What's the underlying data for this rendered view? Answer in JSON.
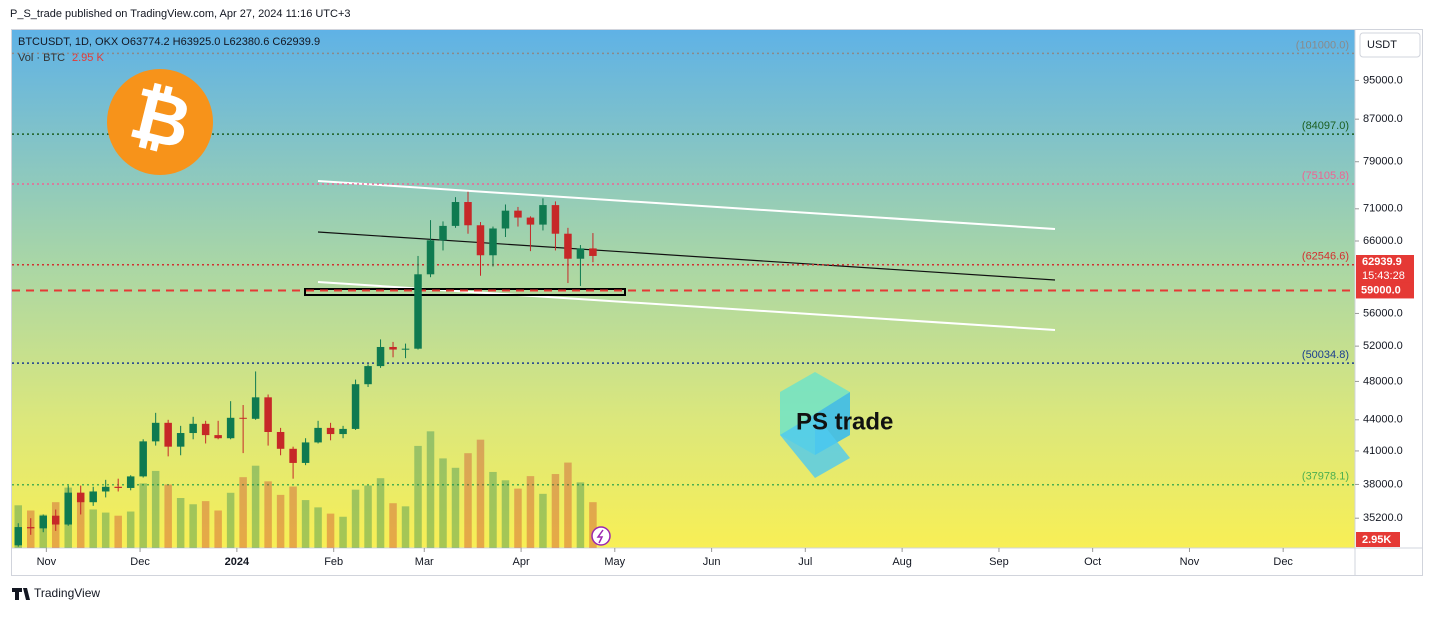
{
  "header": {
    "publisher": "P_S_trade published on TradingView.com, Apr 27, 2024 11:16 UTC+3"
  },
  "footer": {
    "brand": "TradingView"
  },
  "chart_data": {
    "type": "candlestick",
    "symbol_line": "BTCUSDT, 1D, OKX  O63774.2 H63925.0 L62380.6 C62939.9",
    "volume_label": "Vol · BTC",
    "volume_value": "2.95 K",
    "currency": "USDT",
    "last_price": "62939.9",
    "countdown": "15:43:28",
    "last_volume": "2.95K",
    "logo_symbol": "₿",
    "watermark": "PS trade",
    "log_scale": true,
    "up_color": "#0f7a50",
    "down_color": "#c62828",
    "xlim": [
      -11,
      419
    ],
    "xticks": [
      {
        "value": 0,
        "label": "Nov"
      },
      {
        "value": 30,
        "label": "Dec"
      },
      {
        "value": 61,
        "label": "2024"
      },
      {
        "value": 92,
        "label": "Feb"
      },
      {
        "value": 121,
        "label": "Mar"
      },
      {
        "value": 152,
        "label": "Apr"
      },
      {
        "value": 182,
        "label": "May"
      },
      {
        "value": 213,
        "label": "Jun"
      },
      {
        "value": 243,
        "label": "Jul"
      },
      {
        "value": 274,
        "label": "Aug"
      },
      {
        "value": 305,
        "label": "Sep"
      },
      {
        "value": 335,
        "label": "Oct"
      },
      {
        "value": 366,
        "label": "Nov"
      },
      {
        "value": 396,
        "label": "Dec"
      }
    ],
    "ylim": [
      32900,
      106500
    ],
    "yticks": [
      {
        "value": 35200,
        "label": "35200.0"
      },
      {
        "value": 38000,
        "label": "38000.0"
      },
      {
        "value": 41000,
        "label": "41000.0"
      },
      {
        "value": 44000,
        "label": "44000.0"
      },
      {
        "value": 48000,
        "label": "48000.0"
      },
      {
        "value": 52000,
        "label": "52000.0"
      },
      {
        "value": 56000,
        "label": "56000.0"
      },
      {
        "value": 66000,
        "label": "66000.0"
      },
      {
        "value": 71000,
        "label": "71000.0"
      },
      {
        "value": 79000,
        "label": "79000.0"
      },
      {
        "value": 87000,
        "label": "87000.0"
      },
      {
        "value": 95000,
        "label": "95000.0"
      }
    ],
    "levels": [
      {
        "value": 101000,
        "label": "(101000.0)",
        "color": "#8a8a8a",
        "style": "dotted"
      },
      {
        "value": 84097,
        "label": "(84097.0)",
        "color": "#1b5e20",
        "style": "dotted"
      },
      {
        "value": 75105.8,
        "label": "(75105.8)",
        "color": "#f06292",
        "style": "dotted"
      },
      {
        "value": 62546.6,
        "label": "(62546.6)",
        "color": "#d32f2f",
        "style": "dotted"
      },
      {
        "value": 59000,
        "label": "59000.0",
        "color": "#e53935",
        "style": "dashed"
      },
      {
        "value": 50034.8,
        "label": "(50034.8)",
        "color": "#1a3d8f",
        "style": "dotted"
      },
      {
        "value": 37978.1,
        "label": "(37978.1)",
        "color": "#4caf50",
        "style": "dotted"
      }
    ],
    "vlim": [
      0,
      12
    ],
    "x": [
      -9,
      -5,
      -1,
      3,
      7,
      11,
      15,
      19,
      23,
      27,
      31,
      35,
      39,
      43,
      47,
      51,
      55,
      59,
      63,
      67,
      71,
      75,
      79,
      83,
      87,
      91,
      95,
      99,
      103,
      107,
      111,
      115,
      119,
      123,
      127,
      131,
      135,
      139,
      143,
      147,
      151,
      155,
      159,
      163,
      167,
      171,
      175
    ],
    "open": [
      33100,
      34500,
      34400,
      35400,
      34700,
      37300,
      36500,
      37400,
      37800,
      37700,
      38700,
      41900,
      43700,
      41400,
      42700,
      43600,
      42500,
      42200,
      44200,
      44100,
      46300,
      42800,
      41200,
      39900,
      41800,
      43200,
      42600,
      43100,
      47700,
      49700,
      51900,
      51600,
      51700,
      61200,
      66100,
      68300,
      72100,
      68400,
      63900,
      67900,
      70700,
      69600,
      68500,
      71600,
      67100,
      63400,
      64900
    ],
    "high": [
      34800,
      35200,
      35500,
      35900,
      37900,
      37900,
      37800,
      38400,
      38500,
      38800,
      42100,
      44700,
      44000,
      43400,
      44300,
      43900,
      43900,
      45900,
      45500,
      49100,
      46600,
      43200,
      41400,
      42200,
      43900,
      43700,
      43400,
      48200,
      49900,
      52800,
      52500,
      52300,
      63800,
      69200,
      69000,
      72900,
      73800,
      68900,
      68200,
      71700,
      71300,
      69800,
      72700,
      72200,
      68000,
      65400,
      67200
    ],
    "low": [
      33000,
      33900,
      34100,
      34200,
      34600,
      35500,
      36200,
      36900,
      37400,
      37500,
      38600,
      41500,
      40500,
      40600,
      42100,
      41700,
      42100,
      42100,
      40800,
      44000,
      41500,
      40600,
      38500,
      39700,
      41700,
      42000,
      42200,
      43000,
      47400,
      49500,
      50700,
      50600,
      51600,
      60800,
      64600,
      68000,
      67100,
      61000,
      62300,
      66600,
      68200,
      64500,
      67600,
      64600,
      60000,
      59600,
      62900
    ],
    "close": [
      34500,
      34400,
      35400,
      34700,
      37300,
      36500,
      37400,
      37800,
      37700,
      38700,
      41900,
      43700,
      41400,
      42700,
      43600,
      42500,
      42200,
      44200,
      44100,
      46300,
      42800,
      41200,
      39900,
      41800,
      43200,
      42600,
      43100,
      47700,
      49700,
      51900,
      51600,
      51700,
      61200,
      66100,
      68300,
      72100,
      68400,
      63900,
      67900,
      70700,
      69600,
      68500,
      71600,
      67100,
      63400,
      64900,
      63800
    ],
    "volume": [
      4.1,
      3.6,
      3.2,
      4.4,
      5.8,
      4.9,
      3.7,
      3.4,
      3.1,
      3.5,
      6.2,
      7.4,
      6.1,
      4.8,
      4.2,
      4.5,
      3.6,
      5.3,
      6.8,
      7.9,
      6.4,
      5.1,
      5.9,
      4.6,
      3.9,
      3.3,
      3.0,
      5.6,
      6.0,
      6.7,
      4.3,
      4.0,
      9.8,
      11.2,
      8.6,
      7.7,
      9.1,
      10.4,
      7.3,
      6.5,
      5.7,
      6.9,
      5.2,
      7.1,
      8.2,
      6.3,
      4.4
    ]
  }
}
